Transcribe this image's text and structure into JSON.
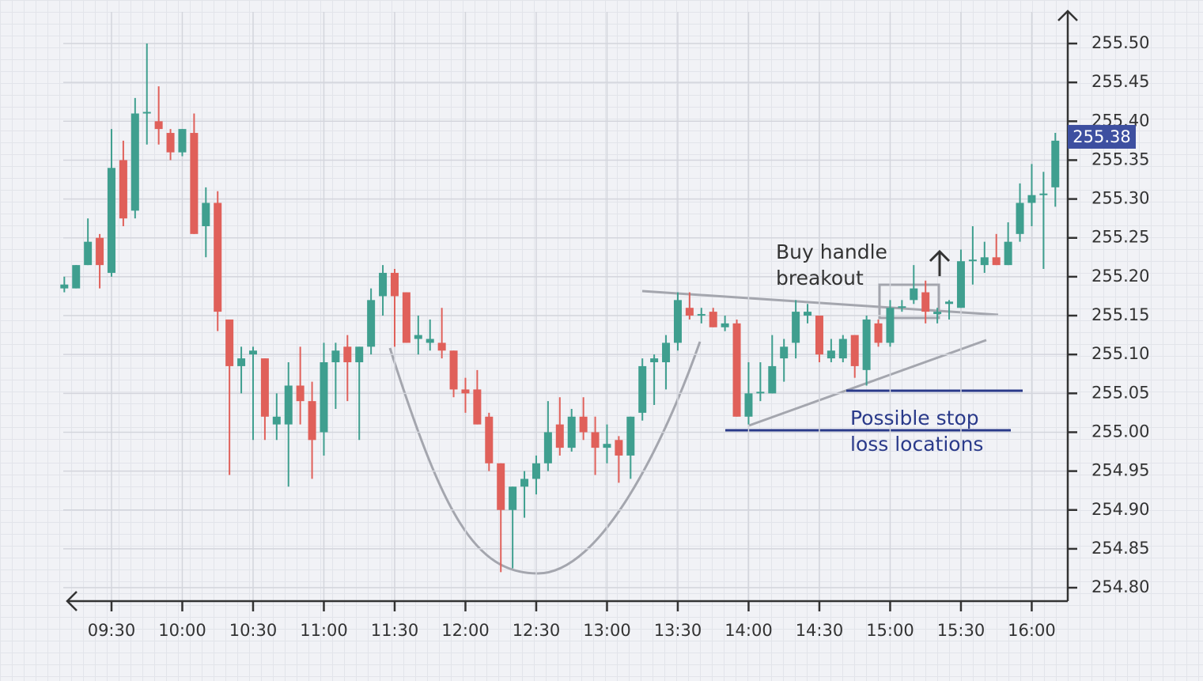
{
  "chart_data": {
    "type": "candlestick",
    "x": [
      550,
      555,
      560,
      565,
      570,
      575,
      580,
      585,
      590,
      595,
      600,
      605,
      610,
      615,
      620,
      625,
      630,
      635,
      640,
      645,
      650,
      655,
      660,
      665,
      670,
      675,
      680,
      685,
      690,
      695,
      700,
      705,
      710,
      715,
      720,
      725,
      730,
      735,
      740,
      745,
      750,
      755,
      760,
      765,
      770,
      775,
      780,
      785,
      790,
      795,
      800,
      805,
      810,
      815,
      820,
      825,
      830,
      835,
      840,
      845,
      850,
      855,
      860,
      865,
      870,
      875,
      880,
      885,
      890,
      895,
      900,
      905,
      910,
      915,
      920,
      925,
      930,
      935,
      940,
      945,
      950,
      955,
      960,
      965,
      970
    ],
    "open": [
      255.185,
      255.185,
      255.215,
      255.25,
      255.205,
      255.35,
      255.285,
      255.41,
      255.4,
      255.385,
      255.36,
      255.385,
      255.265,
      255.295,
      255.145,
      255.085,
      255.1,
      255.095,
      255.01,
      255.01,
      255.06,
      255.04,
      255.0,
      255.09,
      255.11,
      255.09,
      255.11,
      255.175,
      255.205,
      255.18,
      255.12,
      255.115,
      255.115,
      255.105,
      255.055,
      255.055,
      255.02,
      254.96,
      254.9,
      254.93,
      254.94,
      254.96,
      255.01,
      254.98,
      255.02,
      255.0,
      254.98,
      254.99,
      254.97,
      255.025,
      255.09,
      255.09,
      255.115,
      255.16,
      255.15,
      255.155,
      255.135,
      255.14,
      255.02,
      255.05,
      255.05,
      255.095,
      255.115,
      255.15,
      255.15,
      255.095,
      255.095,
      255.125,
      255.08,
      255.14,
      255.115,
      255.16,
      255.17,
      255.18,
      255.152,
      255.165,
      255.16,
      255.22,
      255.215,
      255.225,
      255.215,
      255.255,
      255.295,
      255.305,
      255.315
    ],
    "high": [
      255.2,
      255.215,
      255.275,
      255.255,
      255.39,
      255.375,
      255.43,
      255.5,
      255.445,
      255.39,
      255.39,
      255.41,
      255.315,
      255.31,
      255.145,
      255.11,
      255.11,
      255.095,
      255.05,
      255.09,
      255.11,
      255.065,
      255.115,
      255.115,
      255.125,
      255.11,
      255.185,
      255.215,
      255.21,
      255.18,
      255.15,
      255.145,
      255.16,
      255.105,
      255.07,
      255.08,
      255.025,
      254.96,
      254.93,
      254.95,
      254.97,
      255.04,
      255.045,
      255.03,
      255.045,
      255.02,
      255.01,
      254.995,
      255.02,
      255.095,
      255.1,
      255.125,
      255.18,
      255.18,
      255.16,
      255.16,
      255.15,
      255.145,
      255.09,
      255.09,
      255.125,
      255.12,
      255.17,
      255.165,
      255.15,
      255.12,
      255.125,
      255.125,
      255.15,
      255.145,
      255.17,
      255.17,
      255.215,
      255.195,
      255.16,
      255.17,
      255.235,
      255.265,
      255.245,
      255.255,
      255.27,
      255.32,
      255.345,
      255.335,
      255.385
    ],
    "low": [
      255.18,
      255.185,
      255.215,
      255.185,
      255.2,
      255.265,
      255.275,
      255.37,
      255.37,
      255.35,
      255.355,
      255.255,
      255.225,
      255.13,
      254.945,
      255.05,
      254.99,
      254.99,
      254.99,
      254.93,
      255.01,
      254.94,
      254.97,
      255.03,
      255.04,
      254.99,
      255.1,
      255.15,
      255.11,
      255.115,
      255.1,
      255.105,
      255.095,
      255.045,
      255.025,
      255.01,
      254.95,
      254.82,
      254.825,
      254.89,
      254.92,
      254.95,
      254.97,
      254.975,
      254.99,
      254.945,
      254.96,
      254.935,
      254.94,
      255.015,
      255.035,
      255.055,
      255.105,
      255.145,
      255.14,
      255.135,
      255.13,
      255.02,
      255.01,
      255.04,
      255.05,
      255.065,
      255.095,
      255.14,
      255.09,
      255.09,
      255.09,
      255.07,
      255.06,
      255.11,
      255.11,
      255.155,
      255.165,
      255.14,
      255.14,
      255.145,
      255.16,
      255.19,
      255.205,
      255.215,
      255.215,
      255.245,
      255.265,
      255.21,
      255.29
    ],
    "close": [
      255.19,
      255.215,
      255.245,
      255.215,
      255.34,
      255.275,
      255.41,
      255.412,
      255.39,
      255.36,
      255.39,
      255.255,
      255.295,
      255.155,
      255.085,
      255.095,
      255.105,
      255.02,
      255.02,
      255.06,
      255.04,
      254.99,
      255.09,
      255.105,
      255.09,
      255.11,
      255.17,
      255.205,
      255.175,
      255.115,
      255.125,
      255.12,
      255.105,
      255.055,
      255.05,
      255.01,
      254.96,
      254.9,
      254.93,
      254.94,
      254.96,
      255.0,
      254.98,
      255.02,
      255.0,
      254.98,
      254.985,
      254.97,
      255.02,
      255.085,
      255.095,
      255.115,
      255.17,
      255.15,
      255.152,
      255.135,
      255.14,
      255.02,
      255.05,
      255.052,
      255.085,
      255.11,
      255.155,
      255.155,
      255.1,
      255.105,
      255.12,
      255.085,
      255.145,
      255.115,
      255.16,
      255.162,
      255.185,
      255.155,
      255.155,
      255.168,
      255.22,
      255.222,
      255.225,
      255.215,
      255.245,
      255.295,
      255.305,
      255.307,
      255.375
    ],
    "up_color": "#3f9f8f",
    "down_color": "#e0605a",
    "xlim": [
      551,
      975
    ],
    "xticks": [
      {
        "value": 570,
        "label": "09:30"
      },
      {
        "value": 600,
        "label": "10:00"
      },
      {
        "value": 630,
        "label": "10:30"
      },
      {
        "value": 660,
        "label": "11:00"
      },
      {
        "value": 690,
        "label": "11:30"
      },
      {
        "value": 720,
        "label": "12:00"
      },
      {
        "value": 750,
        "label": "12:30"
      },
      {
        "value": 780,
        "label": "13:00"
      },
      {
        "value": 810,
        "label": "13:30"
      },
      {
        "value": 840,
        "label": "14:00"
      },
      {
        "value": 870,
        "label": "14:30"
      },
      {
        "value": 900,
        "label": "15:00"
      },
      {
        "value": 930,
        "label": "15:30"
      },
      {
        "value": 960,
        "label": "16:00"
      }
    ],
    "ylim": [
      254.78,
      255.54
    ],
    "yticks": [
      {
        "value": 255.5,
        "label": "255.50"
      },
      {
        "value": 255.45,
        "label": "255.45"
      },
      {
        "value": 255.4,
        "label": "255.40"
      },
      {
        "value": 255.35,
        "label": "255.35"
      },
      {
        "value": 255.3,
        "label": "255.30"
      },
      {
        "value": 255.25,
        "label": "255.25"
      },
      {
        "value": 255.2,
        "label": "255.20"
      },
      {
        "value": 255.15,
        "label": "255.15"
      },
      {
        "value": 255.1,
        "label": "255.10"
      },
      {
        "value": 255.05,
        "label": "255.05"
      },
      {
        "value": 255.0,
        "label": "255.00"
      },
      {
        "value": 254.95,
        "label": "254.95"
      },
      {
        "value": 254.9,
        "label": "254.90"
      },
      {
        "value": 254.85,
        "label": "254.85"
      },
      {
        "value": 254.8,
        "label": "254.80"
      }
    ],
    "grid": true,
    "last_price": 255.38,
    "last_price_color": "#3d4fa0",
    "annotations": [
      {
        "lines": [
          "Buy handle",
          "breakout"
        ],
        "color": "#333333"
      },
      {
        "lines": [
          "Possible stop",
          "loss locations"
        ],
        "color": "#2a3a8a"
      }
    ]
  }
}
